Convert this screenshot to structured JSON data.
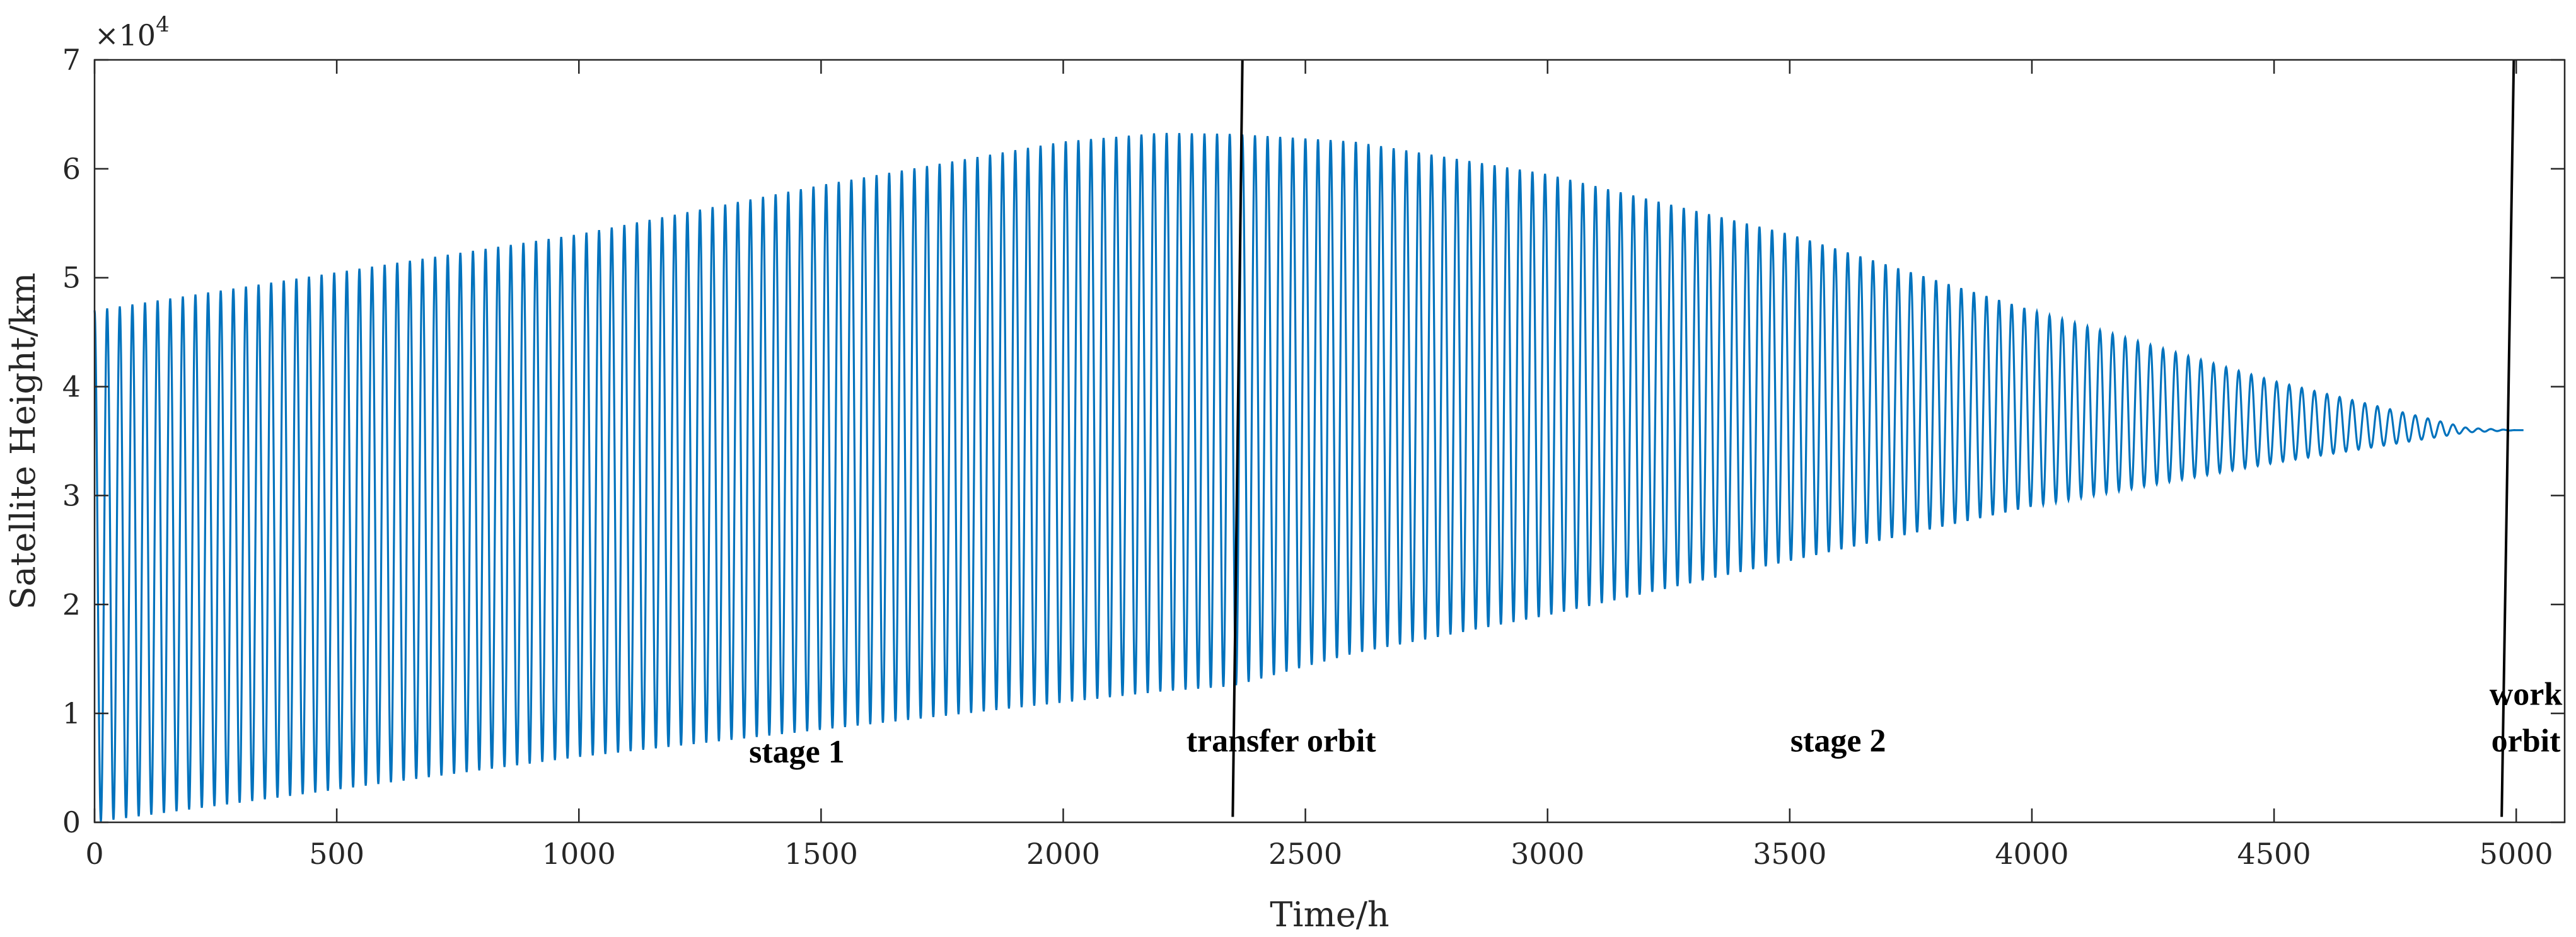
{
  "chart_data": {
    "type": "line",
    "title": "",
    "xlabel": "Time/h",
    "ylabel": "Satellite Height/km",
    "xlim": [
      0,
      5100
    ],
    "ylim": [
      0,
      70000
    ],
    "xticks": [
      0,
      500,
      1000,
      1500,
      2000,
      2500,
      3000,
      3500,
      4000,
      4500,
      5000
    ],
    "yticks": [
      0,
      1,
      2,
      3,
      4,
      5,
      6,
      7
    ],
    "y_exponent_label": "×10",
    "y_exponent_power": "4",
    "grid": false,
    "series_color": "#0072BD",
    "series": [
      {
        "name": "",
        "envelope": {
          "x": [
            0,
            500,
            1000,
            1500,
            2000,
            2200,
            2350,
            2600,
            3000,
            3500,
            4000,
            4500,
            4900,
            5000
          ],
          "upper": [
            47000,
            50500,
            54000,
            58500,
            62500,
            63300,
            63200,
            62500,
            59500,
            54000,
            47000,
            40500,
            36200,
            36000
          ],
          "lower": [
            0,
            3000,
            6000,
            8500,
            11000,
            12000,
            12500,
            15500,
            19000,
            24000,
            29000,
            33000,
            35800,
            36000
          ]
        },
        "oscillation_periods": 192
      }
    ],
    "annotations": [
      {
        "text": "stage 1",
        "x": 1450,
        "y": 5500
      },
      {
        "text": "transfer orbit",
        "x": 2450,
        "y": 6500
      },
      {
        "text": "stage 2",
        "x": 3600,
        "y": 6500
      },
      {
        "text": "work",
        "x": 5020,
        "y": 10800
      },
      {
        "text": "orbit",
        "x": 5020,
        "y": 6500
      }
    ],
    "separator_lines": [
      {
        "x1": 2350,
        "y1": 500,
        "x2": 2370,
        "y2": 70000
      },
      {
        "x1": 4970,
        "y1": 500,
        "x2": 4995,
        "y2": 70000
      }
    ]
  }
}
